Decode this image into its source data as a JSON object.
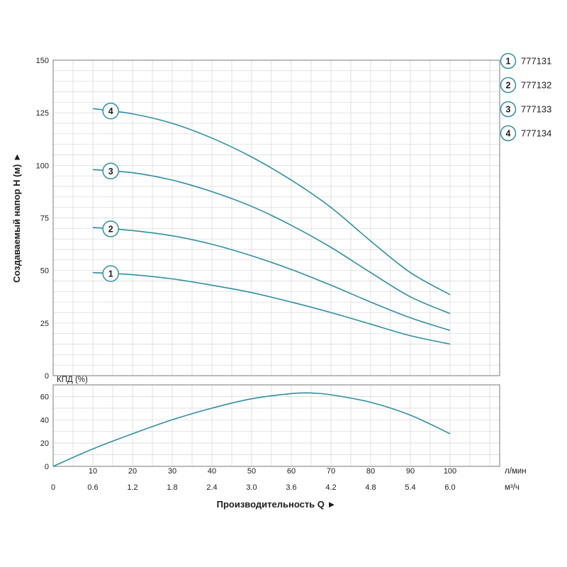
{
  "colors": {
    "curve": "#2e8fa3",
    "grid": "#d6d6d6",
    "border": "#8f8f8f",
    "text": "#1c1c1c",
    "background": "#ffffff"
  },
  "axis": {
    "y_label": "Создаваемый напор Н (м) ►",
    "x_label": "Производительность Q ►",
    "kpd_label": "КПД (%)",
    "unit_lmin": "л/мин",
    "unit_m3h": "м³/ч"
  },
  "legend": {
    "items": [
      {
        "num": "1",
        "code": "777131"
      },
      {
        "num": "2",
        "code": "777132"
      },
      {
        "num": "3",
        "code": "777133"
      },
      {
        "num": "4",
        "code": "777134"
      }
    ]
  },
  "chart_data": {
    "type": "line",
    "x_axis": {
      "unit_primary": "л/мин",
      "unit_secondary": "м³/ч",
      "range_lmin": [
        0,
        112.5
      ],
      "ticks_lmin": [
        10,
        20,
        30,
        40,
        50,
        60,
        70,
        80,
        90,
        100
      ],
      "ticks_m3h": [
        "0",
        "0.6",
        "1.2",
        "1.8",
        "2.4",
        "3.0",
        "3.6",
        "4.2",
        "4.8",
        "5.4",
        "6.0"
      ],
      "ticks_m3h_positions_lmin": [
        0,
        10,
        20,
        30,
        40,
        50,
        60,
        70,
        80,
        90,
        100
      ]
    },
    "head_axis": {
      "label": "Создаваемый напор Н (м)",
      "range": [
        0,
        150
      ],
      "ticks": [
        0,
        25,
        50,
        75,
        100,
        125,
        150
      ],
      "grid_step": 5
    },
    "eff_axis": {
      "label": "КПД (%)",
      "range": [
        0,
        70
      ],
      "ticks": [
        0,
        20,
        40,
        60
      ],
      "grid_step": 10
    },
    "head_series": [
      {
        "name": "1",
        "code": "777131",
        "label_q": 14.5,
        "points": [
          [
            10,
            49
          ],
          [
            20,
            48
          ],
          [
            30,
            46
          ],
          [
            40,
            43
          ],
          [
            50,
            39.5
          ],
          [
            60,
            35
          ],
          [
            70,
            30
          ],
          [
            80,
            24.5
          ],
          [
            90,
            19
          ],
          [
            100,
            15
          ]
        ]
      },
      {
        "name": "2",
        "code": "777132",
        "label_q": 14.5,
        "points": [
          [
            10,
            70.5
          ],
          [
            20,
            69
          ],
          [
            30,
            66.5
          ],
          [
            40,
            62.5
          ],
          [
            50,
            57
          ],
          [
            60,
            50.5
          ],
          [
            70,
            43
          ],
          [
            80,
            35
          ],
          [
            90,
            27.5
          ],
          [
            100,
            21.5
          ]
        ]
      },
      {
        "name": "3",
        "code": "777133",
        "label_q": 14.5,
        "points": [
          [
            10,
            98
          ],
          [
            20,
            96.5
          ],
          [
            30,
            93
          ],
          [
            40,
            87.5
          ],
          [
            50,
            80.5
          ],
          [
            60,
            71.5
          ],
          [
            70,
            61
          ],
          [
            80,
            49
          ],
          [
            90,
            37.5
          ],
          [
            100,
            29.5
          ]
        ]
      },
      {
        "name": "4",
        "code": "777134",
        "label_q": 14.5,
        "points": [
          [
            10,
            127
          ],
          [
            20,
            124.5
          ],
          [
            30,
            120
          ],
          [
            40,
            113
          ],
          [
            50,
            104
          ],
          [
            60,
            93
          ],
          [
            70,
            80
          ],
          [
            80,
            64
          ],
          [
            90,
            49
          ],
          [
            100,
            38.5
          ]
        ]
      }
    ],
    "efficiency_series": {
      "name": "КПД",
      "points": [
        [
          0,
          0
        ],
        [
          10,
          15
        ],
        [
          20,
          28
        ],
        [
          30,
          40
        ],
        [
          40,
          50
        ],
        [
          50,
          58
        ],
        [
          60,
          62.5
        ],
        [
          65,
          63
        ],
        [
          70,
          61.5
        ],
        [
          80,
          55
        ],
        [
          90,
          44
        ],
        [
          100,
          28
        ]
      ]
    }
  }
}
